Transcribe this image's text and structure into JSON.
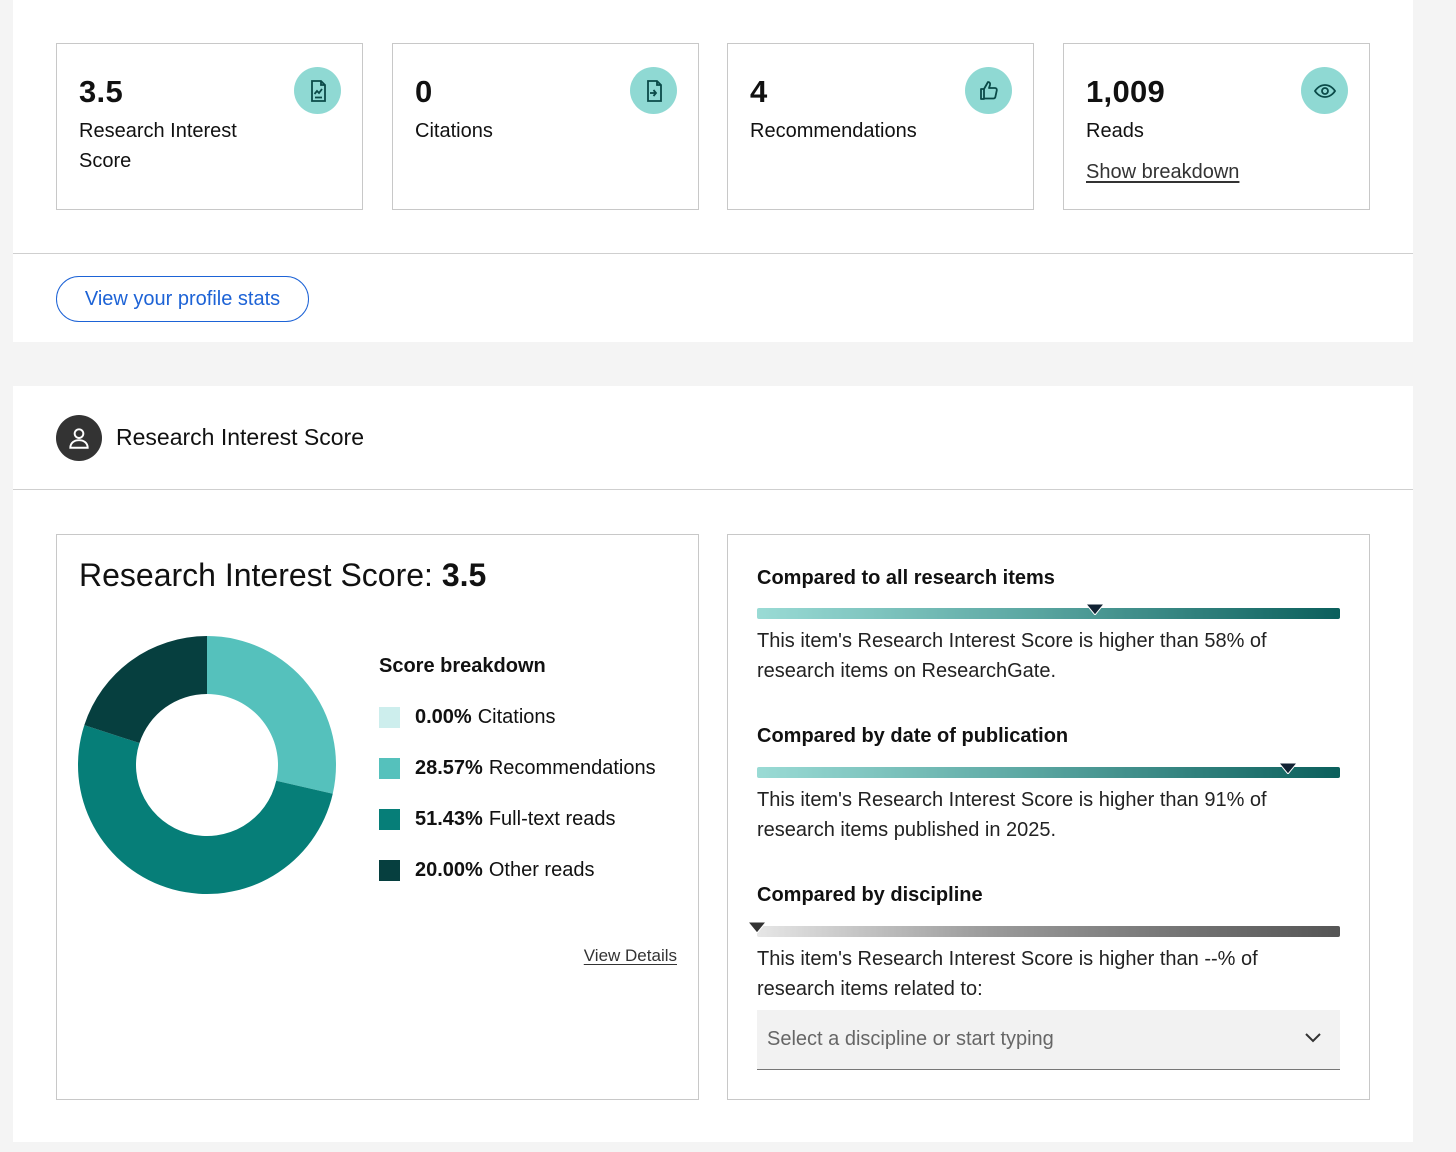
{
  "stats": [
    {
      "value": "3.5",
      "label": "Research Interest Score",
      "icon": "research-interest-icon"
    },
    {
      "value": "0",
      "label": "Citations",
      "icon": "citation-icon"
    },
    {
      "value": "4",
      "label": "Recommendations",
      "icon": "thumbs-up-icon"
    },
    {
      "value": "1,009",
      "label": "Reads",
      "icon": "eye-icon",
      "link": "Show breakdown"
    }
  ],
  "profile_stats_button": "View your profile stats",
  "section": {
    "title": "Research Interest Score",
    "icon": "user-icon"
  },
  "score": {
    "heading_prefix": "Research Interest Score: ",
    "heading_value": "3.5",
    "breakdown_title": "Score breakdown",
    "breakdown": [
      {
        "percent": "0.00%",
        "label": "Citations",
        "value": 0.0,
        "color": "#cdeeed"
      },
      {
        "percent": "28.57%",
        "label": "Recommendations",
        "value": 28.57,
        "color": "#55c1bc"
      },
      {
        "percent": "51.43%",
        "label": "Full-text reads",
        "value": 51.43,
        "color": "#067e78"
      },
      {
        "percent": "20.00%",
        "label": "Other reads",
        "value": 20.0,
        "color": "#063f3f"
      }
    ],
    "view_details": "View Details"
  },
  "comparisons": [
    {
      "title": "Compared to all research items",
      "percentile": 58,
      "style": "teal",
      "text": "This item's Research Interest Score is higher than 58% of research items on ResearchGate."
    },
    {
      "title": "Compared by date of publication",
      "percentile": 91,
      "style": "teal",
      "text": "This item's Research Interest Score is higher than 91% of research items published in 2025."
    },
    {
      "title": "Compared by discipline",
      "percentile": 0,
      "style": "gray",
      "text": "This item's Research Interest Score is higher than --% of research items related to:"
    }
  ],
  "discipline_select": {
    "placeholder": "Select a discipline or start typing",
    "icon": "chevron-down-icon"
  },
  "colors": {
    "accent": "#1d63d6",
    "icon_bg": "#8fd9d3",
    "teal_dark": "#0b5f5c"
  }
}
